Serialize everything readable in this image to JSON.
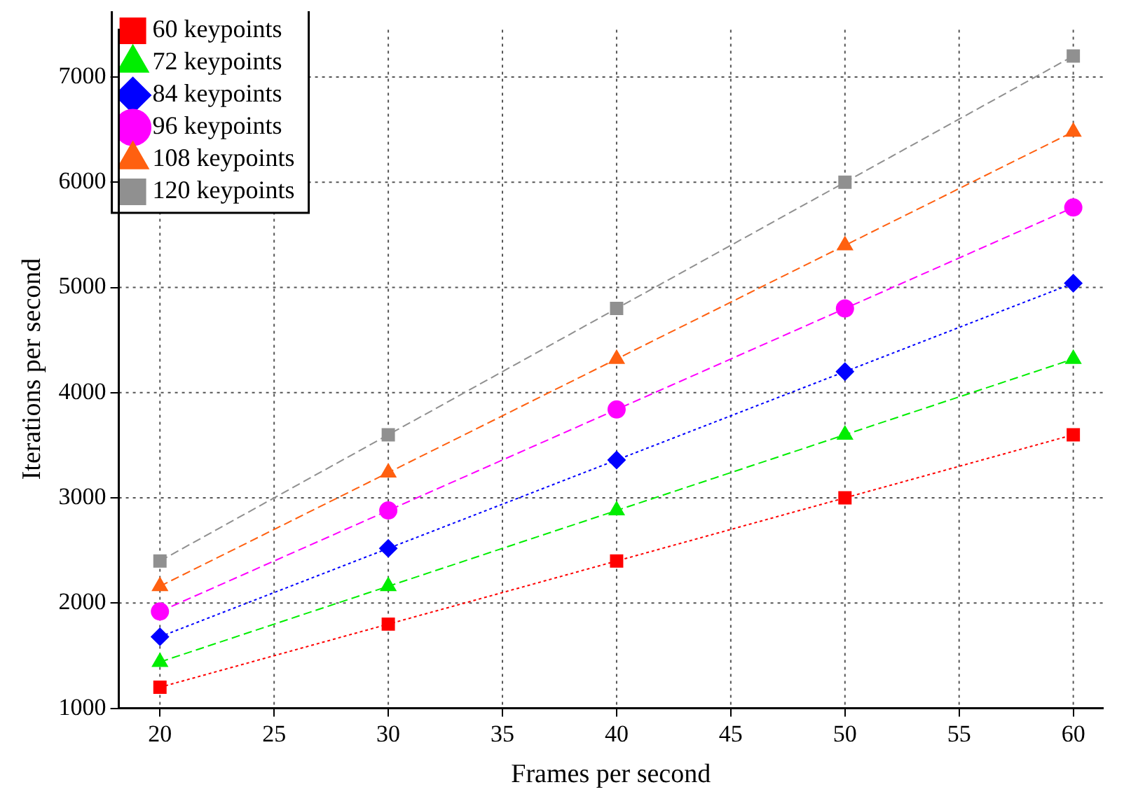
{
  "chart_data": {
    "type": "line",
    "xlabel": "Frames per second",
    "ylabel": "Iterations per second",
    "x": [
      20,
      30,
      40,
      50,
      60
    ],
    "series": [
      {
        "name": "60 keypoints",
        "color": "#ff0000",
        "marker": "square",
        "line_style": "dotted",
        "values": [
          1200,
          1800,
          2400,
          3000,
          3600
        ]
      },
      {
        "name": "72 keypoints",
        "color": "#00ee00",
        "marker": "triangle",
        "line_style": "dashed",
        "values": [
          1440,
          2160,
          2880,
          3600,
          4320
        ]
      },
      {
        "name": "84 keypoints",
        "color": "#0000ff",
        "marker": "diamond",
        "line_style": "dotted",
        "values": [
          1680,
          2520,
          3360,
          4200,
          5040
        ]
      },
      {
        "name": "96 keypoints",
        "color": "#ff00ff",
        "marker": "circle",
        "line_style": "dashed",
        "values": [
          1920,
          2880,
          3840,
          4800,
          5760
        ]
      },
      {
        "name": "108 keypoints",
        "color": "#ff6010",
        "marker": "triangle",
        "line_style": "dashed",
        "values": [
          2160,
          3240,
          4320,
          5400,
          6480
        ]
      },
      {
        "name": "120 keypoints",
        "color": "#909090",
        "marker": "square",
        "line_style": "dashed",
        "values": [
          2400,
          3600,
          4800,
          6000,
          7200
        ]
      }
    ],
    "xlim": [
      18.2,
      61.3
    ],
    "xticks": [
      20,
      25,
      30,
      35,
      40,
      45,
      50,
      55,
      60
    ],
    "ylim": [
      1000,
      7450
    ],
    "yticks": [
      1000,
      2000,
      3000,
      4000,
      5000,
      6000,
      7000
    ],
    "grid": true,
    "legend": "top left"
  }
}
